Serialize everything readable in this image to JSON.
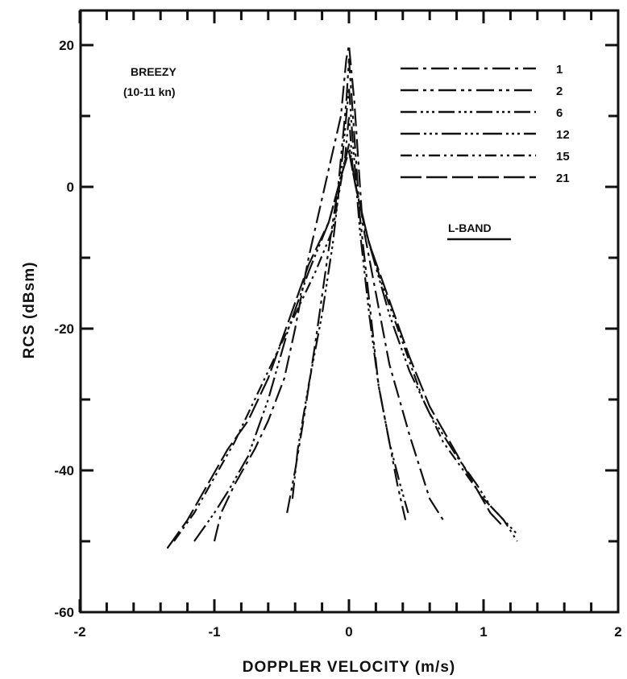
{
  "chart_data": {
    "type": "line",
    "xlabel": "DOPPLER VELOCITY (m/s)",
    "ylabel": "RCS (dBsm)",
    "xlim": [
      -2,
      2
    ],
    "ylim": [
      -60,
      25
    ],
    "x_ticks": [
      "-2",
      "-1",
      "0",
      "1",
      "2"
    ],
    "y_ticks": [
      "20",
      "0",
      "-20",
      "-40",
      "-60"
    ],
    "grid": false,
    "legend_position": "top-right",
    "annotations": {
      "condition": "BREEZY",
      "wind": "(10-11 kn)",
      "band": "L-BAND"
    },
    "series": [
      {
        "name": "1",
        "dash": "22,6,4,6",
        "x": [
          -0.06,
          -0.18,
          -0.3,
          -0.4,
          -0.48,
          -0.6,
          -0.7,
          -0.85,
          -0.95,
          -1.0,
          -0.02,
          0.0,
          0.04,
          0.1,
          0.2,
          0.3,
          0.45,
          0.6,
          0.7
        ],
        "y": [
          10,
          0,
          -10,
          -20,
          -27,
          -33,
          -37,
          -42,
          -46,
          -50,
          18,
          20,
          12,
          -5,
          -15,
          -25,
          -35,
          -44,
          -47
        ]
      },
      {
        "name": "2",
        "dash": "22,6,4,5,4,6",
        "x": [
          -0.46,
          -0.4,
          -0.33,
          -0.25,
          -0.16,
          -0.08,
          -0.02,
          0.0,
          0.03,
          0.08,
          0.15,
          0.22,
          0.3,
          0.36,
          0.42
        ],
        "y": [
          -46,
          -40,
          -32,
          -22,
          -10,
          0,
          12,
          18,
          10,
          -4,
          -16,
          -28,
          -36,
          -42,
          -47
        ]
      },
      {
        "name": "6",
        "dash": "20,5,3,4,3,4,3,5",
        "x": [
          -0.42,
          -0.38,
          -0.3,
          -0.2,
          -0.12,
          -0.06,
          -0.02,
          0.0,
          0.03,
          0.08,
          0.15,
          0.22,
          0.3,
          0.38,
          0.44
        ],
        "y": [
          -44,
          -37,
          -28,
          -18,
          -8,
          2,
          10,
          14,
          6,
          -6,
          -18,
          -28,
          -36,
          -42,
          -46
        ]
      },
      {
        "name": "12",
        "dash": "24,5,3,4,3,4,3,5",
        "x": [
          -1.15,
          -1.0,
          -0.9,
          -0.75,
          -0.6,
          -0.45,
          -0.3,
          -0.15,
          -0.05,
          0.0,
          0.05,
          0.15,
          0.3,
          0.45,
          0.6,
          0.8,
          0.95,
          1.05,
          1.15,
          1.25
        ],
        "y": [
          -50,
          -46,
          -43,
          -38,
          -30,
          -20,
          -12,
          -5,
          2,
          6,
          0,
          -8,
          -18,
          -26,
          -32,
          -38,
          -42,
          -45,
          -47,
          -49
        ]
      },
      {
        "name": "15",
        "dash": "14,5,3,5,3,5",
        "x": [
          -1.3,
          -1.15,
          -1.0,
          -0.85,
          -0.7,
          -0.55,
          -0.4,
          -0.25,
          -0.12,
          -0.03,
          0.0,
          0.03,
          0.12,
          0.25,
          0.4,
          0.55,
          0.7,
          0.85,
          1.0,
          1.15,
          1.25
        ],
        "y": [
          -50,
          -46,
          -41,
          -36,
          -30,
          -24,
          -18,
          -12,
          -6,
          4,
          10,
          2,
          -6,
          -14,
          -22,
          -30,
          -36,
          -40,
          -44,
          -47,
          -50
        ]
      },
      {
        "name": "21",
        "dash": "26,6",
        "x": [
          -1.35,
          -1.2,
          -1.05,
          -0.9,
          -0.75,
          -0.6,
          -0.45,
          -0.3,
          -0.15,
          -0.05,
          0.0,
          0.05,
          0.15,
          0.3,
          0.45,
          0.6,
          0.75,
          0.9,
          1.05,
          1.15
        ],
        "y": [
          -51,
          -47,
          -42,
          -37,
          -33,
          -27,
          -19,
          -11,
          -5,
          2,
          5,
          0,
          -8,
          -16,
          -24,
          -31,
          -36,
          -41,
          -46,
          -48
        ]
      }
    ]
  }
}
